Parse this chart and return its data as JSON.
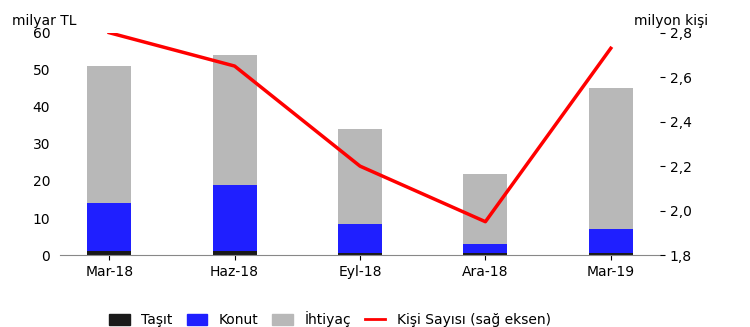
{
  "categories": [
    "Mar-18",
    "Haz-18",
    "Eyl-18",
    "Ara-18",
    "Mar-19"
  ],
  "tasit": [
    1,
    1,
    0.5,
    0.5,
    0.5
  ],
  "konut": [
    13,
    18,
    8,
    2.5,
    6.5
  ],
  "ihtiyac": [
    37,
    35,
    25.5,
    19,
    38
  ],
  "kisi_sayisi": [
    2.8,
    2.65,
    2.2,
    1.95,
    2.73
  ],
  "bar_colors": {
    "tasit": "#1a1a1a",
    "konut": "#1f1fff",
    "ihtiyac": "#b8b8b8"
  },
  "line_color": "#ff0000",
  "left_ylabel": "milyar TL",
  "right_ylabel": "milyon kişi",
  "left_ylim": [
    0,
    60
  ],
  "left_yticks": [
    0,
    10,
    20,
    30,
    40,
    50,
    60
  ],
  "right_ylim": [
    1.8,
    2.8
  ],
  "right_yticks": [
    1.8,
    2.0,
    2.2,
    2.4,
    2.6,
    2.8
  ],
  "legend_labels": [
    "Taşıt",
    "Konut",
    "İhtiyaç",
    "Kişi Sayısı (sağ eksen)"
  ],
  "background_color": "#ffffff",
  "font_size": 10,
  "bar_width": 0.35
}
